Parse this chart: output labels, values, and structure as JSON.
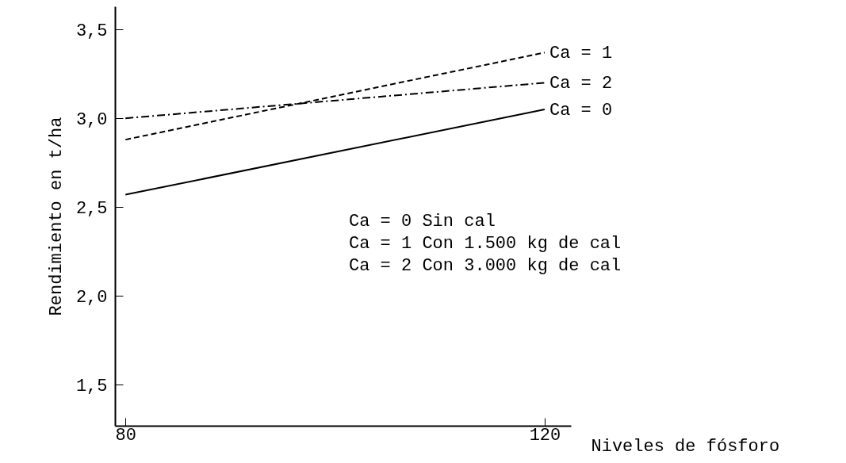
{
  "chart_data": {
    "type": "line",
    "xlabel": "Niveles de fósforo",
    "ylabel": "Rendimiento en t/ha",
    "x": [
      80,
      120
    ],
    "xlim": [
      79,
      122.5
    ],
    "xticks": [
      80,
      120
    ],
    "ylim": [
      1.27,
      3.63
    ],
    "yticks": [
      {
        "value": 1.5,
        "label": "1,5"
      },
      {
        "value": 2.0,
        "label": "2,0"
      },
      {
        "value": 2.5,
        "label": "2,5"
      },
      {
        "value": 3.0,
        "label": "3,0"
      },
      {
        "value": 3.5,
        "label": "3,5"
      }
    ],
    "series": [
      {
        "name": "Ca = 0",
        "color": "#000000",
        "line_style": "solid",
        "values": [
          2.57,
          3.05
        ]
      },
      {
        "name": "Ca = 1",
        "color": "#000000",
        "line_style": "dashed",
        "values": [
          2.88,
          3.37
        ]
      },
      {
        "name": "Ca = 2",
        "color": "#000000",
        "line_style": "dotted",
        "values": [
          3.0,
          3.2
        ]
      }
    ],
    "annotations": [
      "Ca = 0  Sin cal",
      "Ca = 1  Con 1.500 kg de cal",
      "Ca = 2  Con 3.000 kg de cal"
    ],
    "grid": false,
    "marker": "none"
  }
}
